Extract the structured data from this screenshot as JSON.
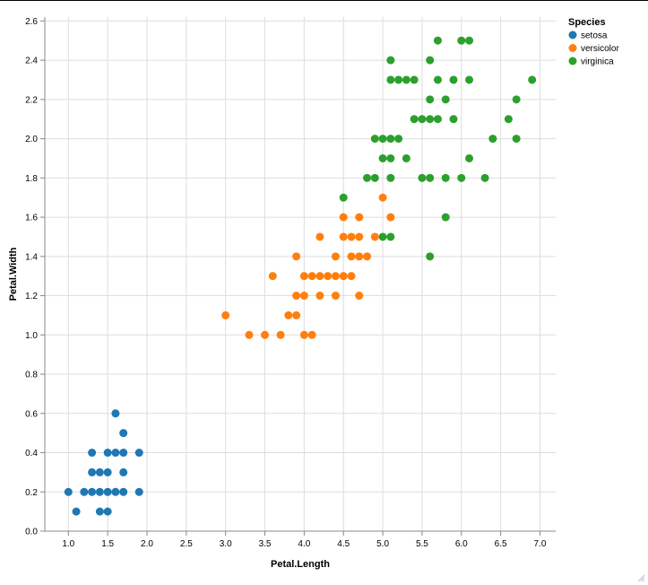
{
  "chart_data": {
    "type": "scatter",
    "title": "",
    "xlabel": "Petal.Length",
    "ylabel": "Petal.Width",
    "xlim": [
      0.7,
      7.2
    ],
    "ylim": [
      0,
      2.62
    ],
    "xticks": [
      "1.0",
      "1.5",
      "2.0",
      "2.5",
      "3.0",
      "3.5",
      "4.0",
      "4.5",
      "5.0",
      "5.5",
      "6.0",
      "6.5",
      "7.0"
    ],
    "yticks": [
      "0.0",
      "0.2",
      "0.4",
      "0.6",
      "0.8",
      "1.0",
      "1.2",
      "1.4",
      "1.6",
      "1.8",
      "2.0",
      "2.2",
      "2.4",
      "2.6"
    ],
    "grid": true,
    "legend": {
      "title": "Species",
      "position": "top-right"
    },
    "series": [
      {
        "name": "setosa",
        "color": "#1f77b4",
        "points": [
          [
            1.0,
            0.2
          ],
          [
            1.1,
            0.1
          ],
          [
            1.2,
            0.2
          ],
          [
            1.3,
            0.2
          ],
          [
            1.3,
            0.3
          ],
          [
            1.3,
            0.4
          ],
          [
            1.4,
            0.1
          ],
          [
            1.4,
            0.2
          ],
          [
            1.4,
            0.3
          ],
          [
            1.5,
            0.1
          ],
          [
            1.5,
            0.2
          ],
          [
            1.5,
            0.3
          ],
          [
            1.5,
            0.4
          ],
          [
            1.6,
            0.2
          ],
          [
            1.6,
            0.4
          ],
          [
            1.6,
            0.6
          ],
          [
            1.7,
            0.2
          ],
          [
            1.7,
            0.3
          ],
          [
            1.7,
            0.4
          ],
          [
            1.7,
            0.5
          ],
          [
            1.9,
            0.2
          ],
          [
            1.9,
            0.4
          ]
        ]
      },
      {
        "name": "versicolor",
        "color": "#ff7f0e",
        "points": [
          [
            3.0,
            1.1
          ],
          [
            3.3,
            1.0
          ],
          [
            3.5,
            1.0
          ],
          [
            3.6,
            1.3
          ],
          [
            3.7,
            1.0
          ],
          [
            3.8,
            1.1
          ],
          [
            3.9,
            1.1
          ],
          [
            3.9,
            1.2
          ],
          [
            3.9,
            1.4
          ],
          [
            4.0,
            1.0
          ],
          [
            4.0,
            1.2
          ],
          [
            4.0,
            1.3
          ],
          [
            4.1,
            1.0
          ],
          [
            4.1,
            1.3
          ],
          [
            4.2,
            1.2
          ],
          [
            4.2,
            1.3
          ],
          [
            4.2,
            1.5
          ],
          [
            4.3,
            1.3
          ],
          [
            4.4,
            1.2
          ],
          [
            4.4,
            1.3
          ],
          [
            4.4,
            1.4
          ],
          [
            4.5,
            1.3
          ],
          [
            4.5,
            1.5
          ],
          [
            4.5,
            1.6
          ],
          [
            4.6,
            1.3
          ],
          [
            4.6,
            1.4
          ],
          [
            4.6,
            1.5
          ],
          [
            4.7,
            1.2
          ],
          [
            4.7,
            1.4
          ],
          [
            4.7,
            1.5
          ],
          [
            4.7,
            1.6
          ],
          [
            4.8,
            1.4
          ],
          [
            4.9,
            1.5
          ],
          [
            5.0,
            1.7
          ],
          [
            5.1,
            1.6
          ]
        ]
      },
      {
        "name": "virginica",
        "color": "#2ca02c",
        "points": [
          [
            4.5,
            1.7
          ],
          [
            4.8,
            1.8
          ],
          [
            4.9,
            1.8
          ],
          [
            4.9,
            2.0
          ],
          [
            5.0,
            1.5
          ],
          [
            5.0,
            1.9
          ],
          [
            5.0,
            2.0
          ],
          [
            5.1,
            1.5
          ],
          [
            5.1,
            1.8
          ],
          [
            5.1,
            1.9
          ],
          [
            5.1,
            2.0
          ],
          [
            5.1,
            2.3
          ],
          [
            5.1,
            2.4
          ],
          [
            5.2,
            2.0
          ],
          [
            5.2,
            2.3
          ],
          [
            5.3,
            1.9
          ],
          [
            5.3,
            2.3
          ],
          [
            5.4,
            2.1
          ],
          [
            5.4,
            2.3
          ],
          [
            5.5,
            1.8
          ],
          [
            5.5,
            2.1
          ],
          [
            5.6,
            1.4
          ],
          [
            5.6,
            1.8
          ],
          [
            5.6,
            2.1
          ],
          [
            5.6,
            2.2
          ],
          [
            5.6,
            2.4
          ],
          [
            5.7,
            2.1
          ],
          [
            5.7,
            2.3
          ],
          [
            5.7,
            2.5
          ],
          [
            5.8,
            1.6
          ],
          [
            5.8,
            1.8
          ],
          [
            5.8,
            2.2
          ],
          [
            5.9,
            2.1
          ],
          [
            5.9,
            2.3
          ],
          [
            6.0,
            1.8
          ],
          [
            6.0,
            2.5
          ],
          [
            6.1,
            1.9
          ],
          [
            6.1,
            2.3
          ],
          [
            6.1,
            2.5
          ],
          [
            6.3,
            1.8
          ],
          [
            6.4,
            2.0
          ],
          [
            6.6,
            2.1
          ],
          [
            6.7,
            2.0
          ],
          [
            6.7,
            2.2
          ],
          [
            6.9,
            2.3
          ]
        ]
      }
    ]
  },
  "colors": {
    "grid": "#dddddd",
    "axis": "#888888",
    "grip": "#bbbbbb"
  },
  "icons": {
    "resize_grip": "resize-grip-icon"
  }
}
